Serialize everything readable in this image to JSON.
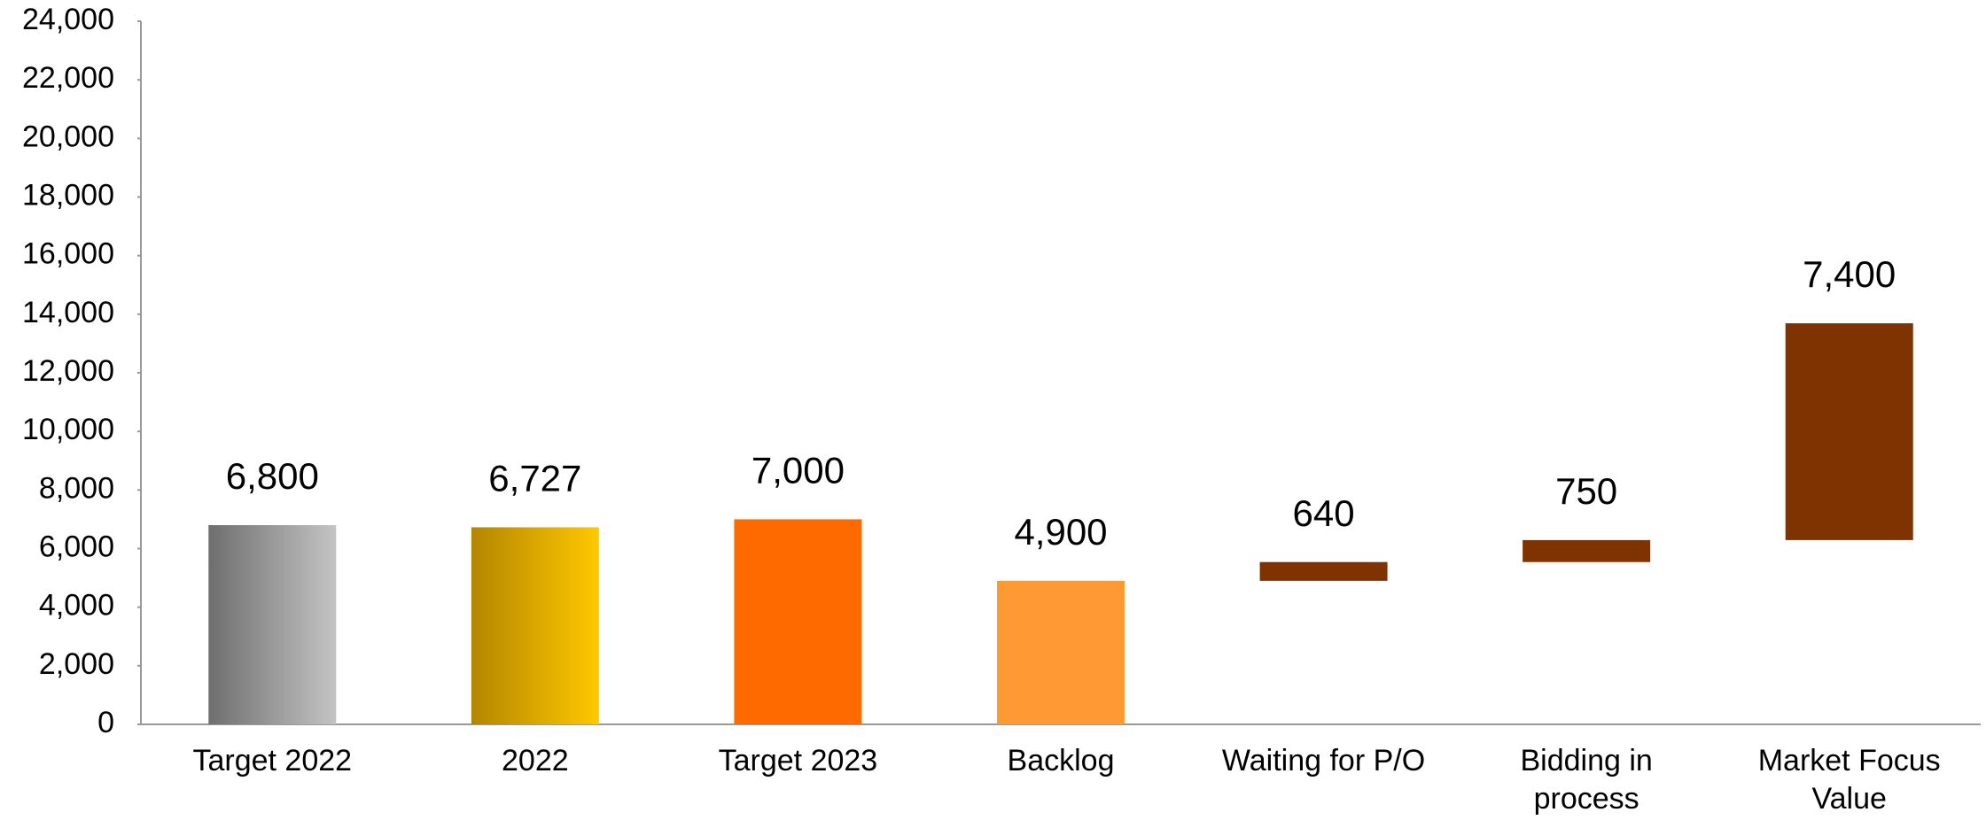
{
  "chart_data": {
    "type": "waterfall",
    "categories": [
      "Target 2022",
      "2022",
      "Target 2023",
      "Backlog",
      "Waiting for P/O",
      "Bidding in process",
      "Market Focus Value"
    ],
    "values": [
      6800,
      6727,
      7000,
      4900,
      640,
      750,
      7400
    ],
    "value_labels": [
      "6,800",
      "6,727",
      "7,000",
      "4,900",
      "640",
      "750",
      "7,400"
    ],
    "measures": [
      "absolute",
      "absolute",
      "absolute",
      "absolute",
      "relative",
      "relative",
      "relative"
    ],
    "colors": [
      [
        "#6e6e6e",
        "#c4c4c4"
      ],
      [
        "#b38600",
        "#ffc800"
      ],
      "#ff6a00",
      "#ff9933",
      "#7f3300",
      "#7f3300",
      "#7f3300"
    ],
    "ylim": [
      0,
      24000
    ],
    "yticks": [
      0,
      {
        "value": 2000,
        "label": "2,000"
      },
      {
        "value": 4000,
        "label": "4,000"
      },
      {
        "value": 6000,
        "label": "6,000"
      },
      {
        "value": 8000,
        "label": "8,000"
      },
      {
        "value": 10000,
        "label": "10,000"
      },
      {
        "value": 12000,
        "label": "12,000"
      },
      {
        "value": 14000,
        "label": "14,000"
      },
      {
        "value": 16000,
        "label": "16,000"
      },
      {
        "value": 18000,
        "label": "18,000"
      },
      {
        "value": 20000,
        "label": "20,000"
      },
      {
        "value": 22000,
        "label": "22,000"
      },
      {
        "value": 24000,
        "label": "24,000"
      }
    ],
    "grid": false
  }
}
